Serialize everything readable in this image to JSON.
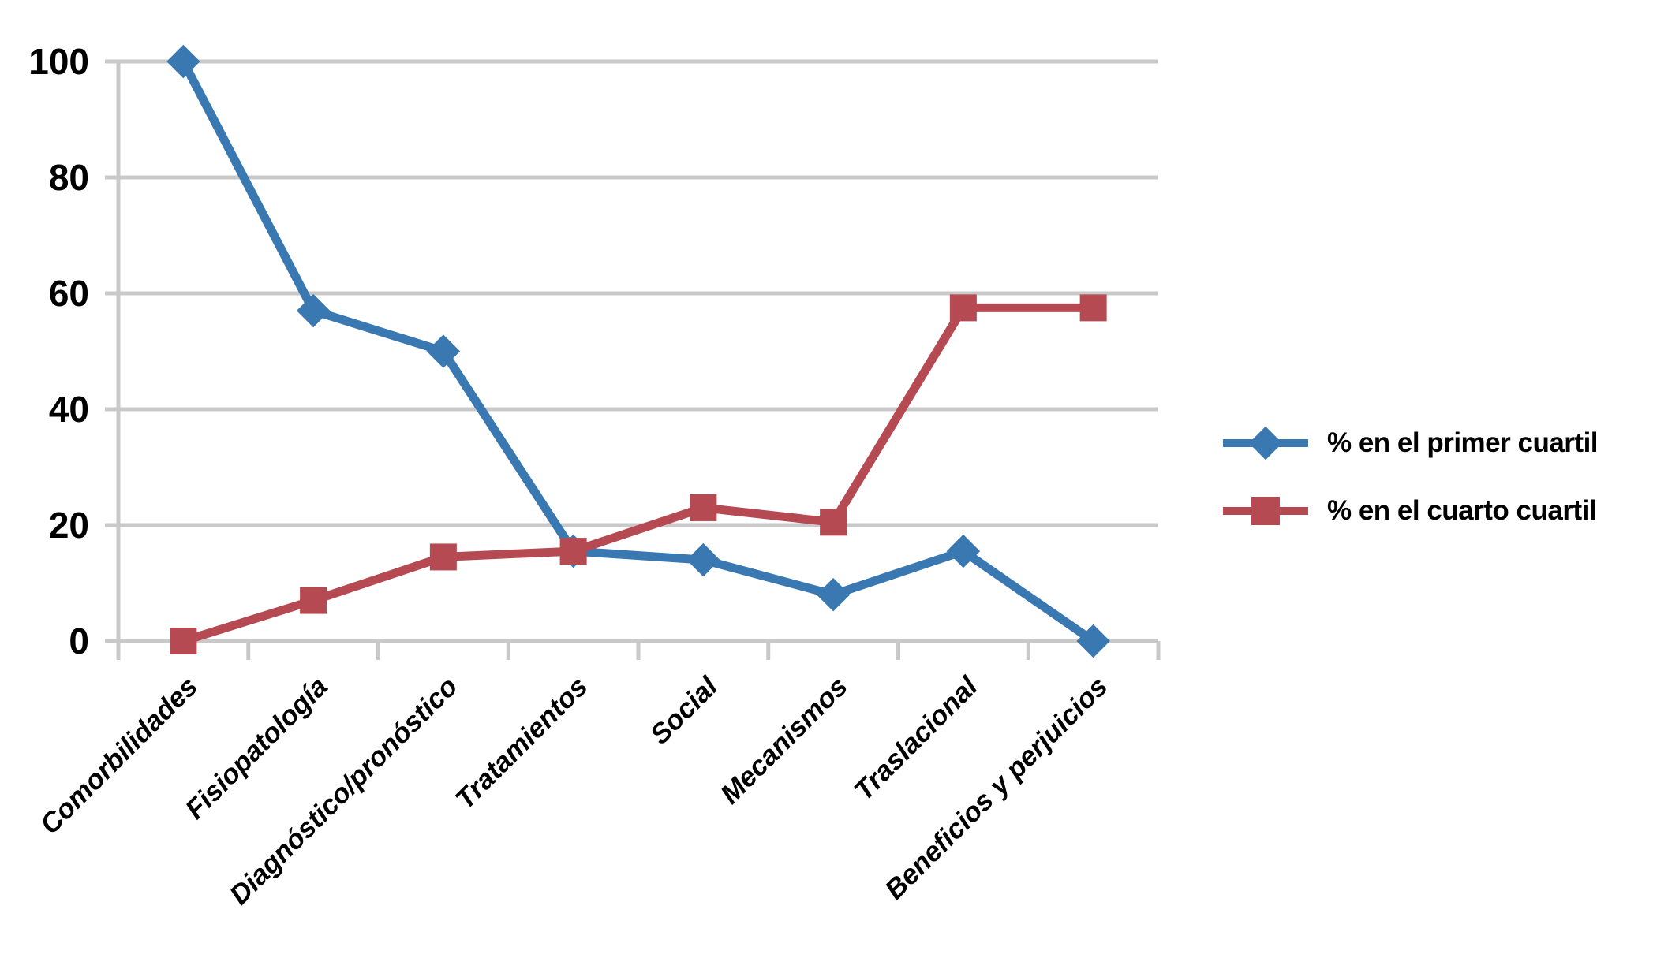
{
  "figure": {
    "background": "#ffffff",
    "text_color": "#000000",
    "gridline_color": "#c9c9c9",
    "axis_color": "#c9c9c9"
  },
  "chart_data": {
    "type": "line",
    "title": "",
    "xlabel": "",
    "ylabel": "",
    "categories": [
      "Comorbilidades",
      "Fisiopatología",
      "Diagnóstico/pronóstico",
      "Tratamientos",
      "Social",
      "Mecanismos",
      "Traslacional",
      "Beneficios y perjuicios"
    ],
    "series": [
      {
        "name": "% en el primer cuartil",
        "marker": "diamond",
        "color": "#3a78b2",
        "values": [
          100,
          57,
          50,
          15.5,
          14,
          8,
          15.5,
          0
        ]
      },
      {
        "name": "% en el cuarto cuartil",
        "marker": "square",
        "color": "#b64a52",
        "values": [
          0,
          7,
          14.5,
          15.5,
          23,
          20.5,
          57.5,
          57.5
        ]
      }
    ],
    "ylim": [
      0,
      100
    ],
    "yticks": [
      0,
      20,
      40,
      60,
      80,
      100
    ],
    "grid": true,
    "legend_position": "right",
    "x_labels_rotation_deg": -45
  }
}
